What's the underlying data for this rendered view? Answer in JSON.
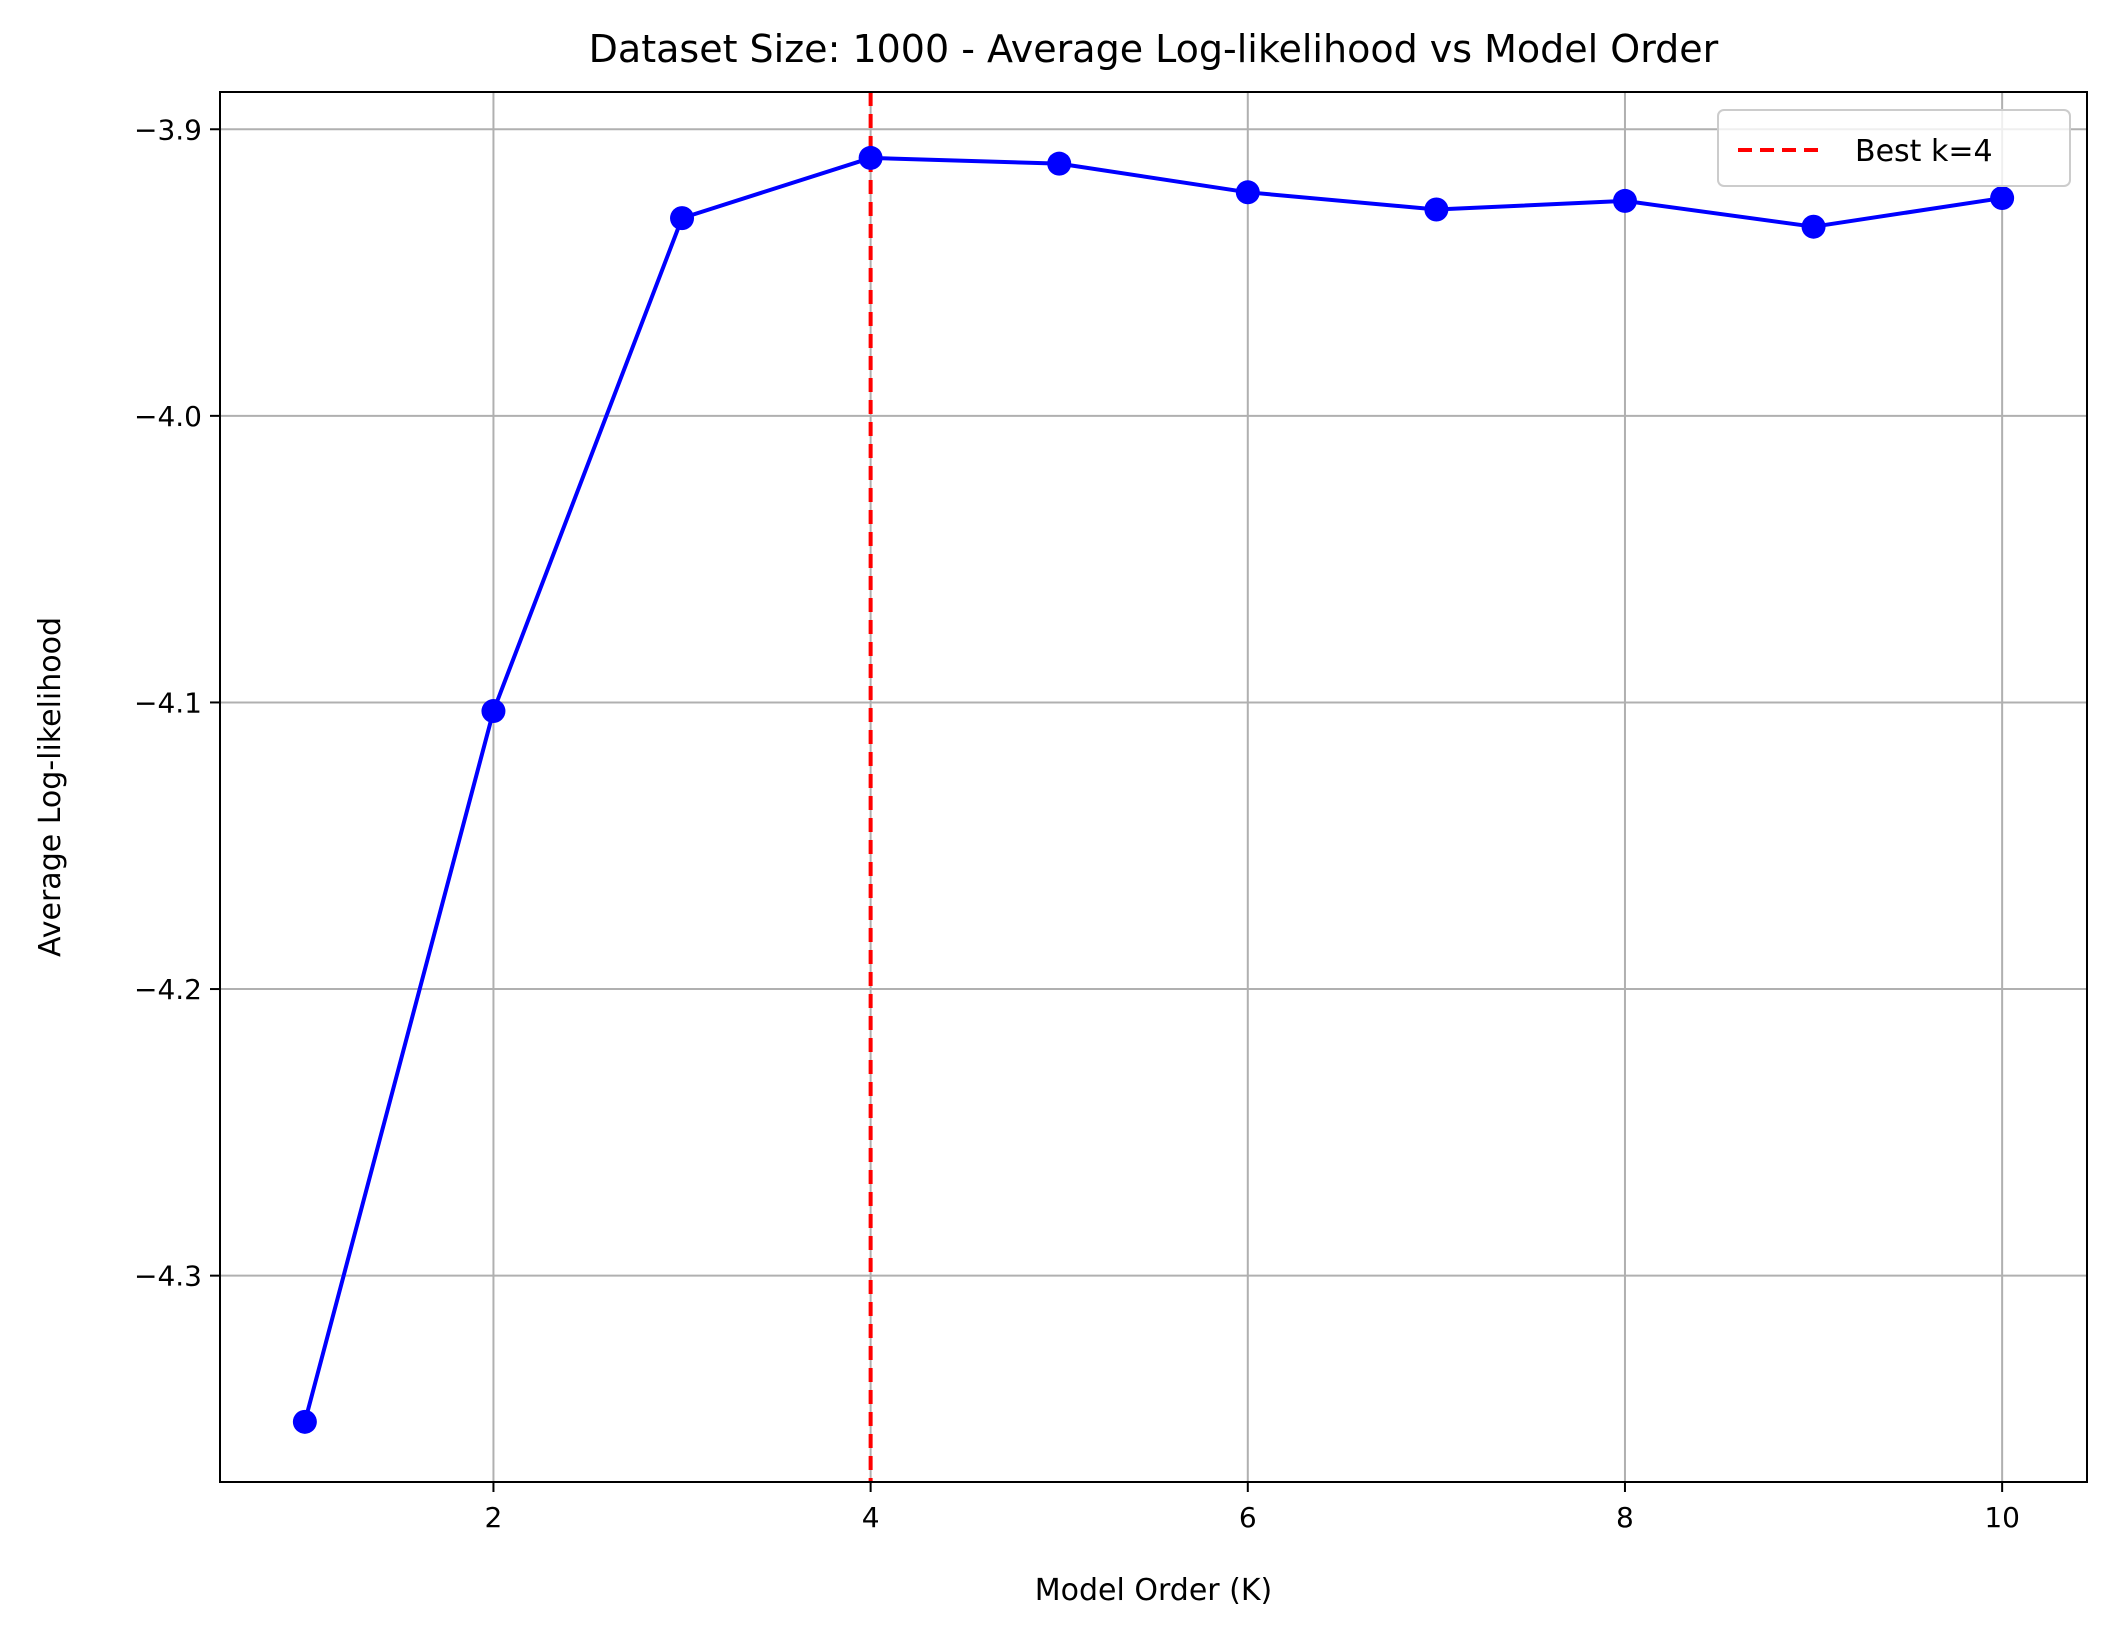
{
  "chart_data": {
    "type": "line",
    "title": "Dataset Size: 1000 - Average Log-likelihood vs Model Order",
    "xlabel": "Model Order (K)",
    "ylabel": "Average Log-likelihood",
    "xlim": [
      0.55,
      10.45
    ],
    "ylim": [
      -4.372,
      -3.887
    ],
    "xticks": [
      2,
      4,
      6,
      8,
      10
    ],
    "xtick_labels": [
      "2",
      "4",
      "6",
      "8",
      "10"
    ],
    "yticks": [
      -3.9,
      -4.0,
      -4.1,
      -4.2,
      -4.3
    ],
    "ytick_labels": [
      "−3.9",
      "−4.0",
      "−4.1",
      "−4.2",
      "−4.3"
    ],
    "grid": true,
    "legend_position": "top-right",
    "series": [
      {
        "type": "line",
        "color": "#0000ff",
        "marker": "circle",
        "x": [
          1,
          2,
          3,
          4,
          5,
          6,
          7,
          8,
          9,
          10
        ],
        "y": [
          -4.351,
          -4.103,
          -3.931,
          -3.91,
          -3.912,
          -3.922,
          -3.928,
          -3.925,
          -3.934,
          -3.924
        ]
      }
    ],
    "reference_lines": [
      {
        "orientation": "vertical",
        "x": 4,
        "color": "#ff0000",
        "style": "dashed",
        "label": "Best k=4"
      }
    ]
  }
}
